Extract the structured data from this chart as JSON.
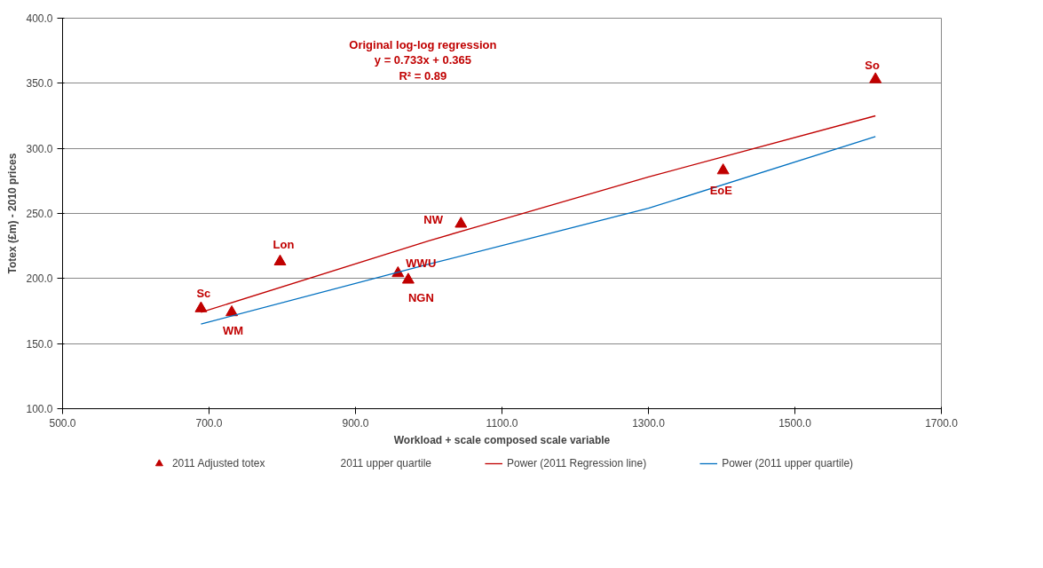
{
  "chart_data": {
    "type": "scatter",
    "xlabel": "Workload + scale composed scale variable",
    "ylabel": "Totex (£m) - 2010 prices",
    "xlim": [
      500,
      1700
    ],
    "xticks": [
      {
        "value": 500,
        "label": "500.0"
      },
      {
        "value": 700,
        "label": "700.0"
      },
      {
        "value": 900,
        "label": "900.0"
      },
      {
        "value": 1100,
        "label": "1100.0"
      },
      {
        "value": 1300,
        "label": "1300.0"
      },
      {
        "value": 1500,
        "label": "1500.0"
      },
      {
        "value": 1700,
        "label": "1700.0"
      }
    ],
    "ylim": [
      100,
      400
    ],
    "yticks": [
      {
        "value": 100,
        "label": "100.0"
      },
      {
        "value": 150,
        "label": "150.0"
      },
      {
        "value": 200,
        "label": "200.0"
      },
      {
        "value": 250,
        "label": "250.0"
      },
      {
        "value": 300,
        "label": "300.0"
      },
      {
        "value": 350,
        "label": "350.0"
      },
      {
        "value": 400,
        "label": "400.0"
      }
    ],
    "grid": "y",
    "legend": "bottom",
    "series": [
      {
        "name": "2011 Adjusted totex",
        "marker": "triangle",
        "color": "#c00000",
        "x": [
          689,
          731,
          797,
          958,
          972,
          1044,
          1402,
          1610
        ],
        "values": [
          177,
          174,
          213,
          204,
          199,
          242,
          283,
          353
        ]
      },
      {
        "name": "2011 upper quartile",
        "type": "scatter",
        "marker": "none"
      },
      {
        "name": "Power (2011 Regression line)",
        "type": "line",
        "color": "#c00000",
        "x": [
          689,
          1000,
          1300,
          1610
        ],
        "values": [
          174,
          229,
          278,
          325
        ]
      },
      {
        "name": "Power (2011 upper quartile)",
        "type": "line",
        "color": "#0070c0",
        "x": [
          689,
          1000,
          1300,
          1610
        ],
        "values": [
          165,
          211,
          254,
          309
        ]
      }
    ],
    "annotations": [
      "Original log-log regression",
      "y = 0.733x + 0.365",
      "R² = 0.89",
      {
        "text": "Sc",
        "x": 689,
        "y": 177
      },
      {
        "text": "WM",
        "x": 731,
        "y": 174
      },
      {
        "text": "Lon",
        "x": 797,
        "y": 213
      },
      {
        "text": "WWU",
        "x": 958,
        "y": 204
      },
      {
        "text": "NGN",
        "x": 972,
        "y": 199
      },
      {
        "text": "NW",
        "x": 1044,
        "y": 242
      },
      {
        "text": "EoE",
        "x": 1402,
        "y": 283
      },
      {
        "text": "So",
        "x": 1610,
        "y": 353
      }
    ]
  }
}
